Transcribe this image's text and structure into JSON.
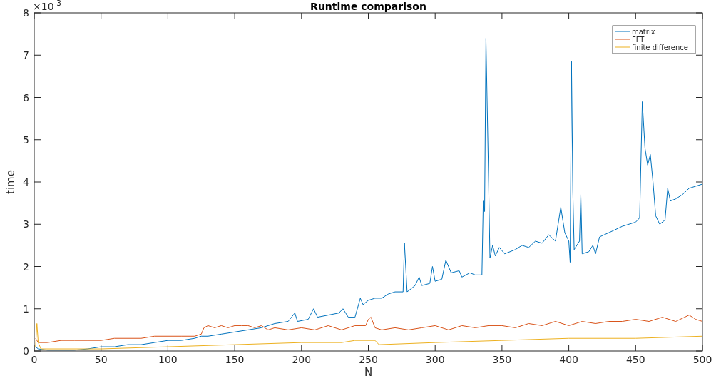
{
  "chart_data": {
    "type": "line",
    "title": "Runtime comparison",
    "xlabel": "N",
    "ylabel": "time",
    "annotations": [
      "×10$^{-3}$"
    ],
    "xlim": [
      0,
      500
    ],
    "xticks": [
      0,
      50,
      100,
      150,
      200,
      250,
      300,
      350,
      400,
      450,
      500
    ],
    "ylim": [
      0,
      8
    ],
    "yticks": [
      0,
      1,
      2,
      3,
      4,
      5,
      6,
      7,
      8
    ],
    "grid": false,
    "legend": "top right",
    "line_style": "solid",
    "series": [
      {
        "name": "matrix",
        "color": "#0072bd",
        "x": [
          1,
          3,
          10,
          20,
          30,
          40,
          50,
          60,
          70,
          80,
          90,
          100,
          110,
          120,
          125,
          130,
          140,
          150,
          160,
          170,
          175,
          180,
          190,
          195,
          197,
          205,
          209,
          212,
          220,
          228,
          231,
          235,
          240,
          244,
          246,
          250,
          255,
          260,
          265,
          270,
          276,
          277,
          279,
          285,
          288,
          290,
          296,
          298,
          300,
          305,
          308,
          312,
          318,
          320,
          326,
          330,
          335,
          336,
          337,
          338,
          340,
          341,
          343,
          345,
          348,
          352,
          360,
          365,
          370,
          375,
          380,
          385,
          390,
          394,
          397,
          400,
          401,
          402,
          403,
          404,
          408,
          409,
          410,
          415,
          418,
          420,
          423,
          430,
          440,
          450,
          453,
          455,
          457,
          459,
          461,
          463,
          465,
          468,
          472,
          474,
          476,
          480,
          485,
          490,
          495,
          500
        ],
        "values": [
          0.1,
          0.05,
          0.02,
          0.02,
          0.02,
          0.05,
          0.1,
          0.1,
          0.15,
          0.15,
          0.2,
          0.25,
          0.25,
          0.3,
          0.35,
          0.35,
          0.4,
          0.45,
          0.5,
          0.55,
          0.6,
          0.65,
          0.7,
          0.9,
          0.7,
          0.75,
          1.0,
          0.8,
          0.85,
          0.9,
          1.0,
          0.8,
          0.8,
          1.25,
          1.1,
          1.2,
          1.25,
          1.25,
          1.35,
          1.4,
          1.4,
          2.55,
          1.4,
          1.55,
          1.75,
          1.55,
          1.6,
          2.0,
          1.65,
          1.7,
          2.15,
          1.85,
          1.9,
          1.75,
          1.85,
          1.8,
          1.8,
          3.55,
          3.3,
          7.4,
          4.0,
          2.2,
          2.5,
          2.25,
          2.45,
          2.3,
          2.4,
          2.5,
          2.45,
          2.6,
          2.55,
          2.75,
          2.6,
          3.4,
          2.8,
          2.6,
          2.1,
          6.85,
          3.8,
          2.4,
          2.6,
          3.7,
          2.3,
          2.35,
          2.5,
          2.3,
          2.7,
          2.8,
          2.95,
          3.05,
          3.15,
          5.9,
          4.8,
          4.4,
          4.65,
          4.0,
          3.2,
          3.0,
          3.1,
          3.85,
          3.55,
          3.6,
          3.7,
          3.85,
          3.9,
          3.95
        ]
      },
      {
        "name": "FFT",
        "color": "#d95319",
        "x": [
          1,
          3,
          10,
          20,
          30,
          40,
          50,
          60,
          70,
          80,
          90,
          100,
          110,
          120,
          125,
          127,
          130,
          135,
          140,
          145,
          150,
          155,
          160,
          165,
          170,
          175,
          180,
          190,
          200,
          210,
          220,
          230,
          240,
          248,
          250,
          252,
          255,
          260,
          270,
          280,
          290,
          300,
          310,
          320,
          330,
          340,
          350,
          360,
          370,
          380,
          390,
          400,
          410,
          420,
          430,
          440,
          450,
          460,
          470,
          480,
          490,
          495,
          500
        ],
        "values": [
          0.3,
          0.2,
          0.2,
          0.25,
          0.25,
          0.25,
          0.25,
          0.3,
          0.3,
          0.3,
          0.35,
          0.35,
          0.35,
          0.35,
          0.4,
          0.55,
          0.6,
          0.55,
          0.6,
          0.55,
          0.6,
          0.6,
          0.6,
          0.55,
          0.6,
          0.5,
          0.55,
          0.5,
          0.55,
          0.5,
          0.6,
          0.5,
          0.6,
          0.6,
          0.75,
          0.8,
          0.55,
          0.5,
          0.55,
          0.5,
          0.55,
          0.6,
          0.5,
          0.6,
          0.55,
          0.6,
          0.6,
          0.55,
          0.65,
          0.6,
          0.7,
          0.6,
          0.7,
          0.65,
          0.7,
          0.7,
          0.75,
          0.7,
          0.8,
          0.7,
          0.85,
          0.75,
          0.7
        ]
      },
      {
        "name": "finite difference",
        "color": "#edb120",
        "x": [
          1,
          2,
          3,
          5,
          50,
          100,
          150,
          200,
          230,
          240,
          255,
          258,
          300,
          350,
          400,
          450,
          500
        ],
        "values": [
          0.1,
          0.65,
          0.2,
          0.05,
          0.05,
          0.1,
          0.15,
          0.2,
          0.2,
          0.25,
          0.25,
          0.15,
          0.2,
          0.25,
          0.3,
          0.3,
          0.35
        ]
      }
    ]
  }
}
